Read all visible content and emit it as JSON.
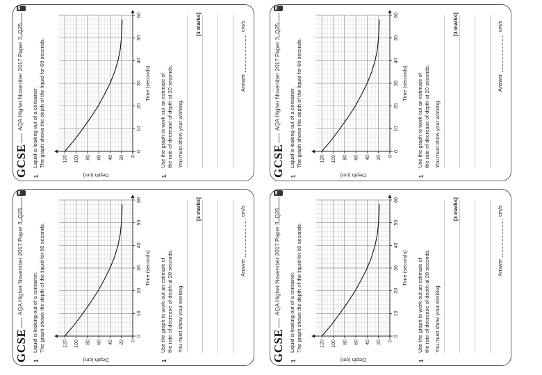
{
  "cards": [
    {
      "logo": "GCSE",
      "ref": "AQA Higher November 2017 Paper 3, Q25",
      "qnum": "1",
      "intro1": "Liquid is leaking out of a container.",
      "intro2": "The graph shows the depth of the liquid for 60 seconds.",
      "q2num": "1",
      "q2line1": "Use the graph to work out an estimate of",
      "q2line2": "the rate of decrease of depth at 20 seconds.",
      "show": "You must show your working.",
      "marks": "[3 marks]",
      "answer": "Answer",
      "unit": "cm/s"
    },
    {
      "logo": "GCSE",
      "ref": "AQA Higher November 2017 Paper 3, Q25",
      "qnum": "1",
      "intro1": "Liquid is leaking out of a container.",
      "intro2": "The graph shows the depth of the liquid for 60 seconds.",
      "q2num": "1",
      "q2line1": "Use the graph to work out an estimate of",
      "q2line2": "the rate of decrease of depth at 20 seconds.",
      "show": "You must show your working.",
      "marks": "[3 marks]",
      "answer": "Answer",
      "unit": "cm/s"
    },
    {
      "logo": "GCSE",
      "ref": "AQA Higher November 2017 Paper 3, Q25",
      "qnum": "1",
      "intro1": "Liquid is leaking out of a container.",
      "intro2": "The graph shows the depth of the liquid for 60 seconds.",
      "q2num": "1",
      "q2line1": "Use the graph to work out an estimate of",
      "q2line2": "the rate of decrease of depth at 20 seconds.",
      "show": "You must show your working.",
      "marks": "[3 marks]",
      "answer": "Answer",
      "unit": "cm/s"
    },
    {
      "logo": "GCSE",
      "ref": "AQA Higher November 2017 Paper 3, Q25",
      "qnum": "1",
      "intro1": "Liquid is leaking out of a container.",
      "intro2": "The graph shows the depth of the liquid for 60 seconds.",
      "q2num": "1",
      "q2line1": "Use the graph to work out an estimate of",
      "q2line2": "the rate of decrease of depth at 20 seconds.",
      "show": "You must show your working.",
      "marks": "[3 marks]",
      "answer": "Answer",
      "unit": "cm/s"
    }
  ],
  "chart_data": {
    "type": "line",
    "xlabel": "Time (seconds)",
    "ylabel": "Depth (cm)",
    "xlim": [
      0,
      60
    ],
    "ylim": [
      0,
      130
    ],
    "xticks": [
      0,
      10,
      20,
      30,
      40,
      50,
      60
    ],
    "yticks": [
      0,
      20,
      40,
      60,
      80,
      100,
      120
    ],
    "grid": true,
    "series": [
      {
        "name": "Depth of liquid",
        "x": [
          0,
          5,
          10,
          15,
          20,
          25,
          30,
          35,
          40,
          45,
          50,
          55,
          58
        ],
        "y": [
          120,
          103,
          88,
          74,
          61,
          50,
          40,
          32,
          26,
          22,
          20,
          19,
          18.5
        ]
      }
    ]
  }
}
